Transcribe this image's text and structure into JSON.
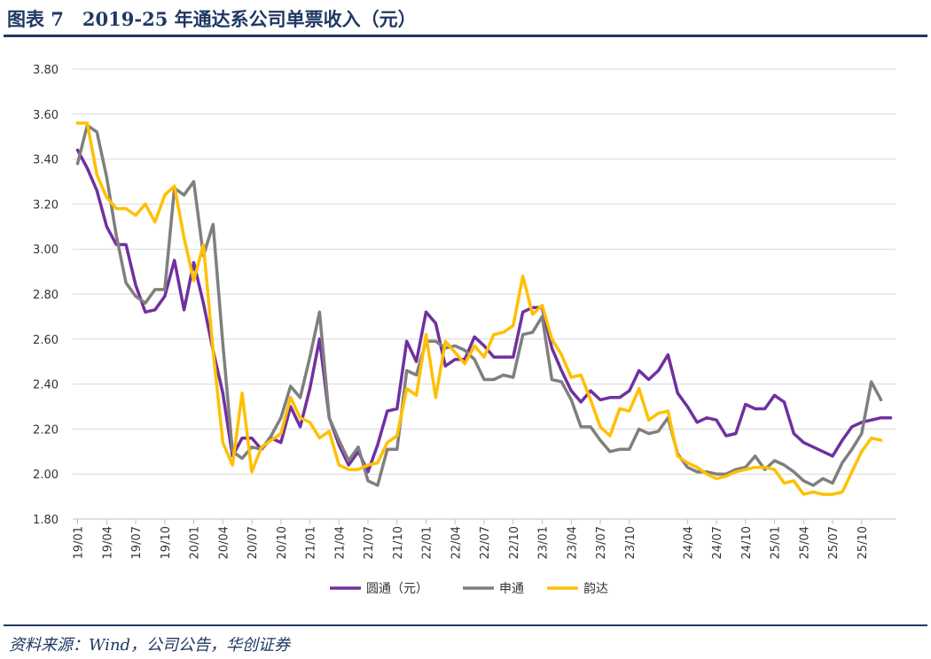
{
  "header": {
    "title": "图表 7　2019-25 年通达系公司单票收入（元）"
  },
  "footer": {
    "source": "资料来源：Wind，公司公告，华创证券"
  },
  "chart_data": {
    "type": "line",
    "title": "2019-25 年通达系公司单票收入（元）",
    "xlabel": "",
    "ylabel": "",
    "ylim": [
      1.8,
      3.8
    ],
    "yticks": [
      1.8,
      2.0,
      2.2,
      2.4,
      2.6,
      2.8,
      3.0,
      3.2,
      3.4,
      3.6,
      3.8
    ],
    "ytick_labels": [
      "1.80",
      "2.00",
      "2.20",
      "2.40",
      "2.60",
      "2.80",
      "3.00",
      "3.20",
      "3.40",
      "3.60",
      "3.80"
    ],
    "xtick_labels": [
      "19/01",
      "19/04",
      "19/07",
      "19/10",
      "20/01",
      "20/04",
      "20/07",
      "20/10",
      "21/01",
      "21/04",
      "21/07",
      "21/10",
      "22/01",
      "22/04",
      "22/07",
      "22/10",
      "23/01",
      "23/04",
      "23/07",
      "23/10",
      "24/04",
      "24/07",
      "24/10",
      "25/01",
      "25/04",
      "25/07",
      "25/10"
    ],
    "xtick_positions": [
      0,
      3,
      6,
      9,
      12,
      15,
      18,
      21,
      24,
      27,
      30,
      33,
      36,
      39,
      42,
      45,
      48,
      51,
      54,
      57,
      63,
      66,
      69,
      72,
      75,
      78,
      81
    ],
    "n_points": 85,
    "legend_position": "bottom",
    "series": [
      {
        "name": "圆通（元）",
        "color": "#7030a0",
        "values": [
          3.44,
          3.36,
          3.26,
          3.1,
          3.02,
          3.02,
          2.84,
          2.72,
          2.73,
          2.79,
          2.95,
          2.73,
          2.94,
          2.76,
          2.55,
          2.36,
          2.08,
          2.16,
          2.16,
          2.11,
          2.16,
          2.14,
          2.3,
          2.21,
          2.38,
          2.6,
          2.25,
          2.13,
          2.04,
          2.1,
          2.01,
          2.13,
          2.28,
          2.29,
          2.59,
          2.5,
          2.72,
          2.67,
          2.48,
          2.51,
          2.51,
          2.61,
          2.57,
          2.52,
          2.52,
          2.52,
          2.72,
          2.74,
          2.74,
          2.56,
          2.46,
          2.37,
          2.32,
          2.37,
          2.33,
          2.34,
          2.34,
          2.37,
          2.46,
          2.42,
          2.46,
          2.53,
          2.36,
          2.3,
          2.23,
          2.25,
          2.24,
          2.17,
          2.18,
          2.31,
          2.29,
          2.29,
          2.35,
          2.32,
          2.18,
          2.14,
          2.12,
          2.1,
          2.08,
          2.15,
          2.21,
          2.23,
          2.24,
          2.25,
          2.25
        ]
      },
      {
        "name": "申通",
        "color": "#7f7f7f",
        "values": [
          3.38,
          3.55,
          3.52,
          3.32,
          3.06,
          2.85,
          2.79,
          2.76,
          2.82,
          2.82,
          3.27,
          3.24,
          3.3,
          2.97,
          3.11,
          2.58,
          2.1,
          2.07,
          2.12,
          2.11,
          2.17,
          2.25,
          2.39,
          2.34,
          2.52,
          2.72,
          2.25,
          2.15,
          2.06,
          2.12,
          1.97,
          1.95,
          2.11,
          2.11,
          2.46,
          2.44,
          2.59,
          2.59,
          2.56,
          2.57,
          2.55,
          2.51,
          2.42,
          2.42,
          2.44,
          2.43,
          2.62,
          2.63,
          2.7,
          2.42,
          2.41,
          2.33,
          2.21,
          2.21,
          2.15,
          2.1,
          2.11,
          2.11,
          2.2,
          2.18,
          2.19,
          2.25,
          2.09,
          2.03,
          2.01,
          2.01,
          2.0,
          2.0,
          2.02,
          2.03,
          2.08,
          2.02,
          2.06,
          2.04,
          2.01,
          1.97,
          1.95,
          1.98,
          1.96,
          2.05,
          2.11,
          2.18,
          2.41,
          2.33
        ]
      },
      {
        "name": "韵达",
        "color": "#ffc000",
        "values": [
          3.56,
          3.56,
          3.33,
          3.23,
          3.18,
          3.18,
          3.15,
          3.2,
          3.12,
          3.24,
          3.28,
          3.05,
          2.86,
          3.02,
          2.55,
          2.14,
          2.04,
          2.36,
          2.01,
          2.12,
          2.15,
          2.18,
          2.34,
          2.25,
          2.23,
          2.16,
          2.19,
          2.04,
          2.02,
          2.02,
          2.04,
          2.05,
          2.14,
          2.17,
          2.38,
          2.35,
          2.62,
          2.34,
          2.59,
          2.54,
          2.49,
          2.57,
          2.52,
          2.62,
          2.63,
          2.66,
          2.88,
          2.71,
          2.75,
          2.6,
          2.53,
          2.43,
          2.44,
          2.33,
          2.21,
          2.17,
          2.29,
          2.28,
          2.38,
          2.24,
          2.27,
          2.28,
          2.08,
          2.05,
          2.03,
          2.0,
          1.98,
          1.99,
          2.01,
          2.02,
          2.03,
          2.03,
          2.02,
          1.96,
          1.97,
          1.91,
          1.92,
          1.91,
          1.91,
          1.92,
          2.01,
          2.1,
          2.16,
          2.15
        ]
      }
    ]
  }
}
